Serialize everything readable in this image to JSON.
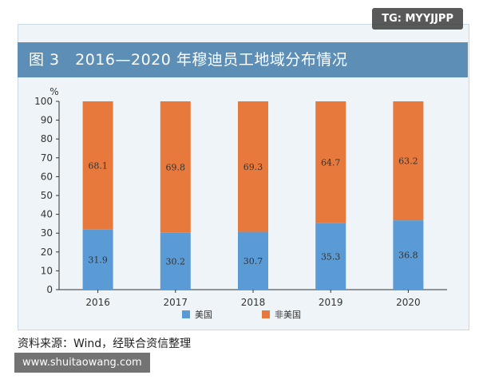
{
  "badge": "TG: MYYJJPP",
  "title": "图 3　2016—2020 年穆迪员工地域分布情况",
  "source": "资料来源：Wind，经联合资信整理",
  "watermark": "www.shuitaowang.com",
  "colors": {
    "us": "#5b9bd5",
    "non_us": "#e8793d",
    "title_bg": "#5d8fb6"
  },
  "chart_data": {
    "type": "bar",
    "stacked": true,
    "categories": [
      "2016",
      "2017",
      "2018",
      "2019",
      "2020"
    ],
    "series": [
      {
        "name": "美国",
        "values": [
          31.9,
          30.2,
          30.7,
          35.3,
          36.8
        ]
      },
      {
        "name": "非美国",
        "values": [
          68.1,
          69.8,
          69.3,
          64.7,
          63.2
        ]
      }
    ],
    "y_unit": "%",
    "ylim": [
      0,
      100
    ],
    "yticks": [
      0,
      10,
      20,
      30,
      40,
      50,
      60,
      70,
      80,
      90,
      100
    ],
    "legend_position": "bottom"
  }
}
